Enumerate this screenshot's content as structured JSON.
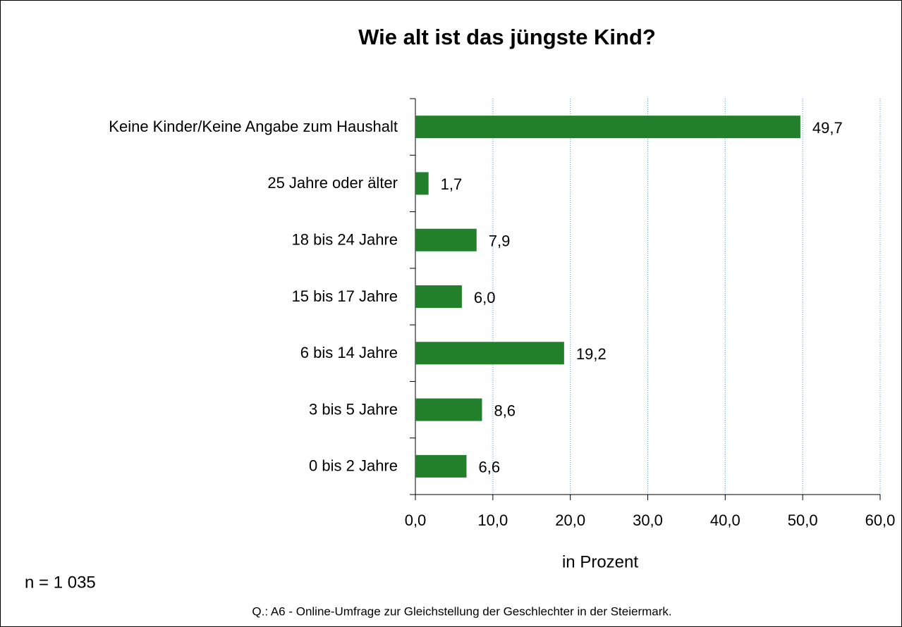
{
  "chart_data": {
    "type": "bar",
    "orientation": "horizontal",
    "title": "Wie alt ist das jüngste Kind?",
    "categories": [
      "Keine Kinder/Keine Angabe zum Haushalt",
      "25 Jahre oder älter",
      "18 bis 24 Jahre",
      "15 bis 17 Jahre",
      "6 bis 14 Jahre",
      "3 bis 5 Jahre",
      "0 bis 2 Jahre"
    ],
    "values": [
      49.7,
      1.7,
      7.9,
      6.0,
      19.2,
      8.6,
      6.6
    ],
    "value_labels": [
      "49,7",
      "1,7",
      "7,9",
      "6,0",
      "19,2",
      "8,6",
      "6,6"
    ],
    "color": "#22802a",
    "xlim": [
      0,
      60
    ],
    "xticks": [
      {
        "value": 0,
        "label": "0,0"
      },
      {
        "value": 10,
        "label": "10,0"
      },
      {
        "value": 20,
        "label": "20,0"
      },
      {
        "value": 30,
        "label": "30,0"
      },
      {
        "value": 40,
        "label": "40,0"
      },
      {
        "value": 50,
        "label": "50,0"
      },
      {
        "value": 60,
        "label": "60,0"
      }
    ],
    "xlabel": "in Prozent",
    "grid": true,
    "grid_color": "#5b9bd5",
    "annotations": [
      "n =  1 035",
      "Q.: A6 - Online-Umfrage  zur Gleichstellung  der Geschlechter  in der Steiermark."
    ]
  }
}
